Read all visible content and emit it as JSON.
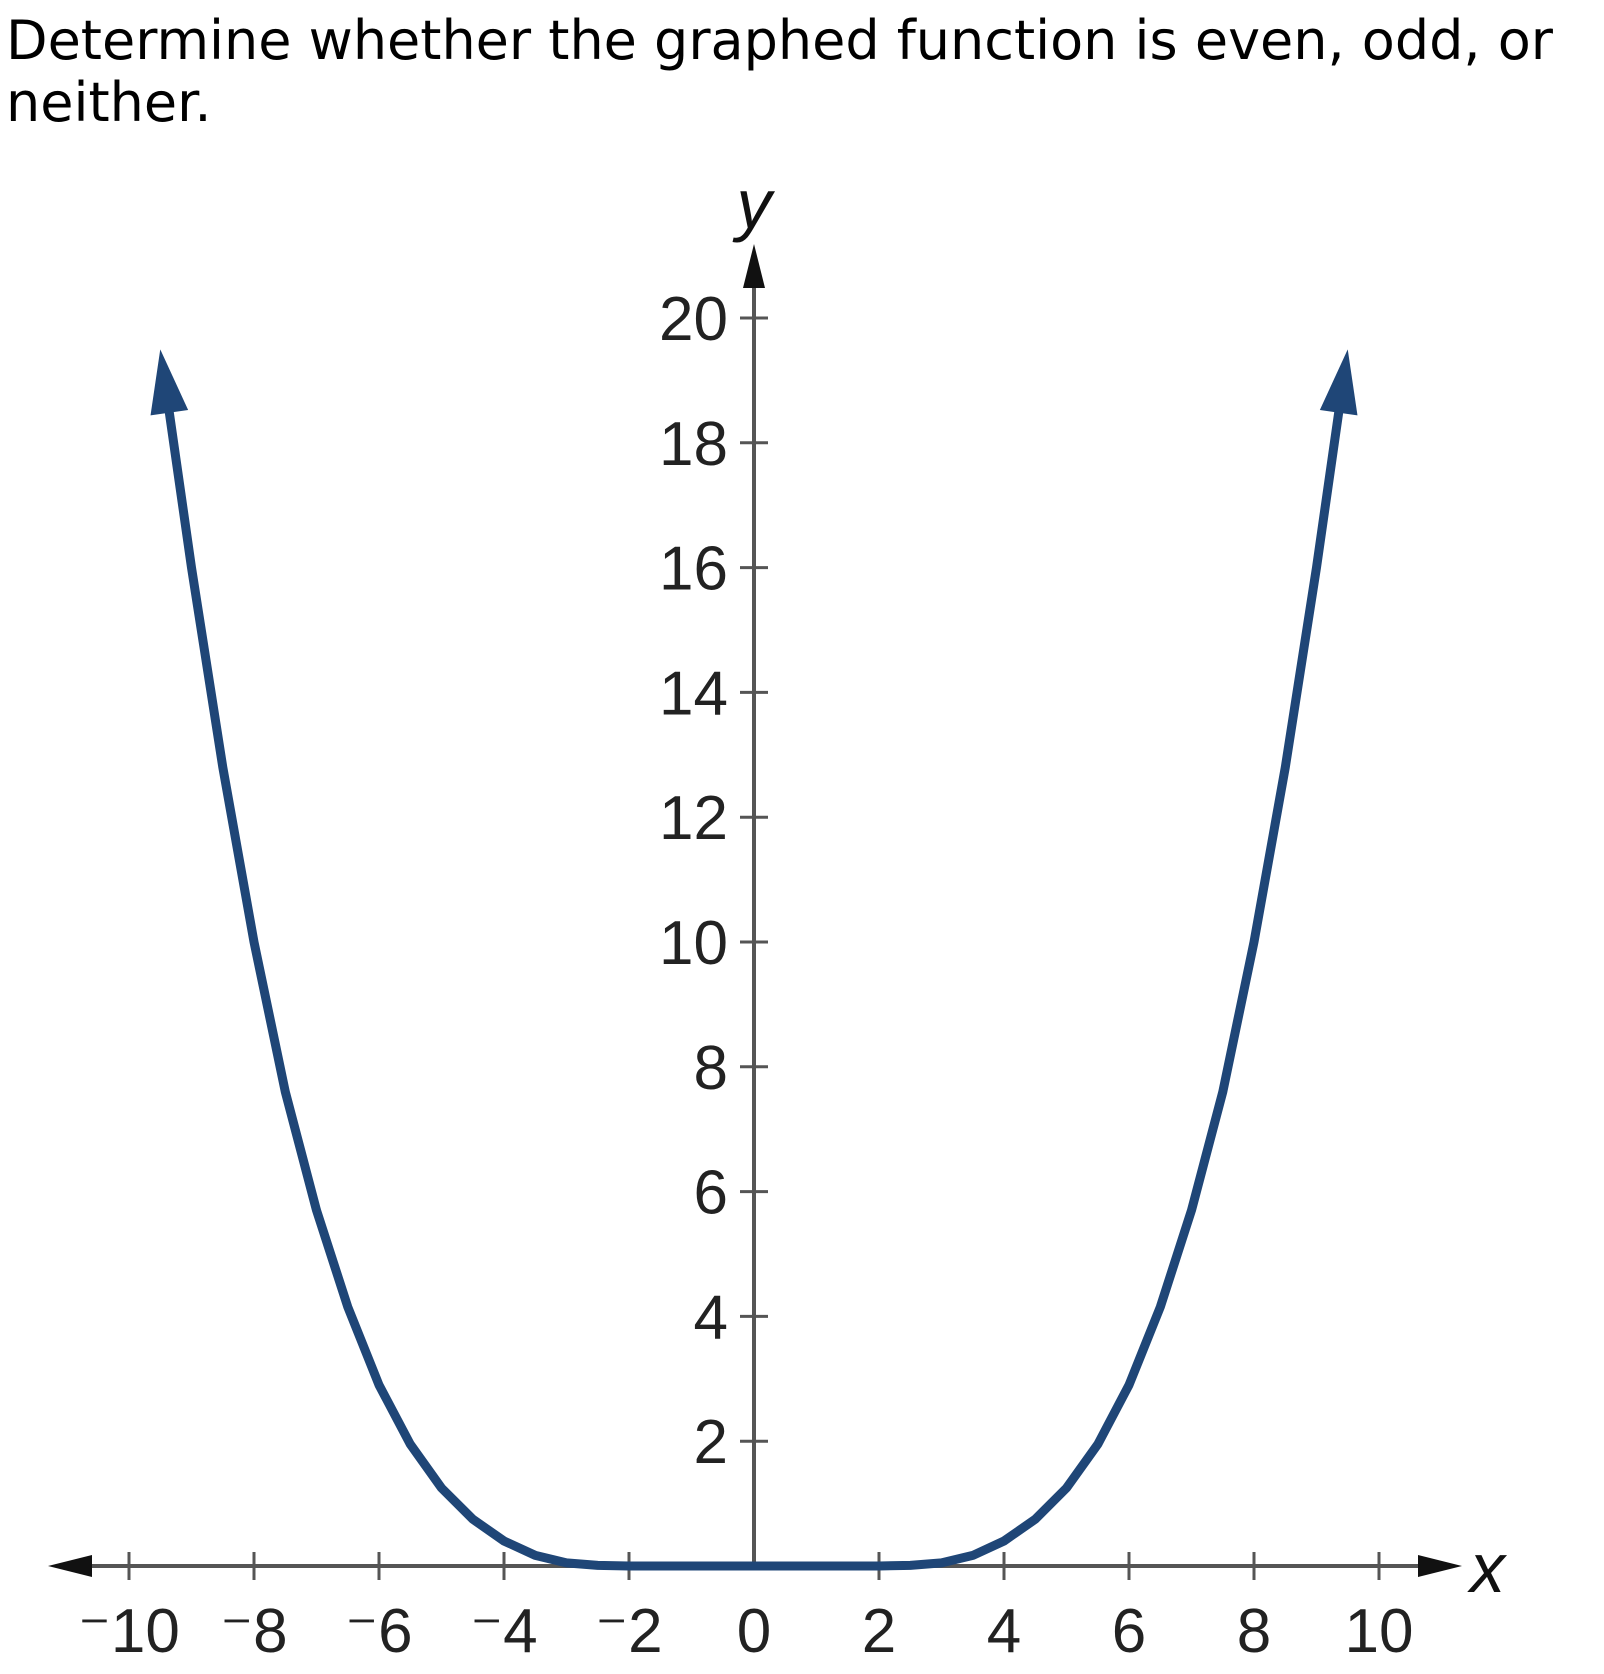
{
  "question": {
    "text": "Determine whether the graphed function is even, odd, or neither."
  },
  "chart_data": {
    "type": "line",
    "title": "",
    "xlabel": "x",
    "ylabel": "y",
    "xlim": [
      -10,
      10
    ],
    "ylim": [
      0,
      20
    ],
    "x_ticks": [
      -10,
      -8,
      -6,
      -4,
      -2,
      0,
      2,
      4,
      6,
      8,
      10
    ],
    "x_tick_labels": [
      "⁻10",
      "⁻8",
      "⁻6",
      "⁻4",
      "⁻2",
      "0",
      "2",
      "4",
      "6",
      "8",
      "10"
    ],
    "y_ticks": [
      2,
      4,
      6,
      8,
      10,
      12,
      14,
      16,
      18,
      20
    ],
    "y_tick_labels": [
      "2",
      "4",
      "6",
      "8",
      "10",
      "12",
      "14",
      "16",
      "18",
      "20"
    ],
    "grid": false,
    "curve_color": "#1f4677",
    "axis_color": "#555555",
    "series": [
      {
        "x": [
          -9.4,
          -9.0,
          -8.5,
          -8.0,
          -7.5,
          -7.0,
          -6.5,
          -6.0,
          -5.5,
          -5.0,
          -4.5,
          -4.0,
          -3.5,
          -3.0,
          -2.5,
          -2.0,
          -1.0,
          0,
          1.0,
          2.0,
          2.5,
          3.0,
          3.5,
          4.0,
          4.5,
          5.0,
          5.5,
          6.0,
          6.5,
          7.0,
          7.5,
          8.0,
          8.5,
          9.0,
          9.4
        ],
        "y": [
          18.8,
          16.0,
          12.8,
          10.0,
          7.6,
          5.7,
          4.15,
          2.9,
          1.95,
          1.25,
          0.75,
          0.4,
          0.17,
          0.05,
          0.01,
          0,
          0,
          0,
          0,
          0,
          0.01,
          0.05,
          0.17,
          0.4,
          0.75,
          1.25,
          1.95,
          2.9,
          4.15,
          5.7,
          7.6,
          10.0,
          12.8,
          16.0,
          18.8
        ]
      }
    ]
  }
}
